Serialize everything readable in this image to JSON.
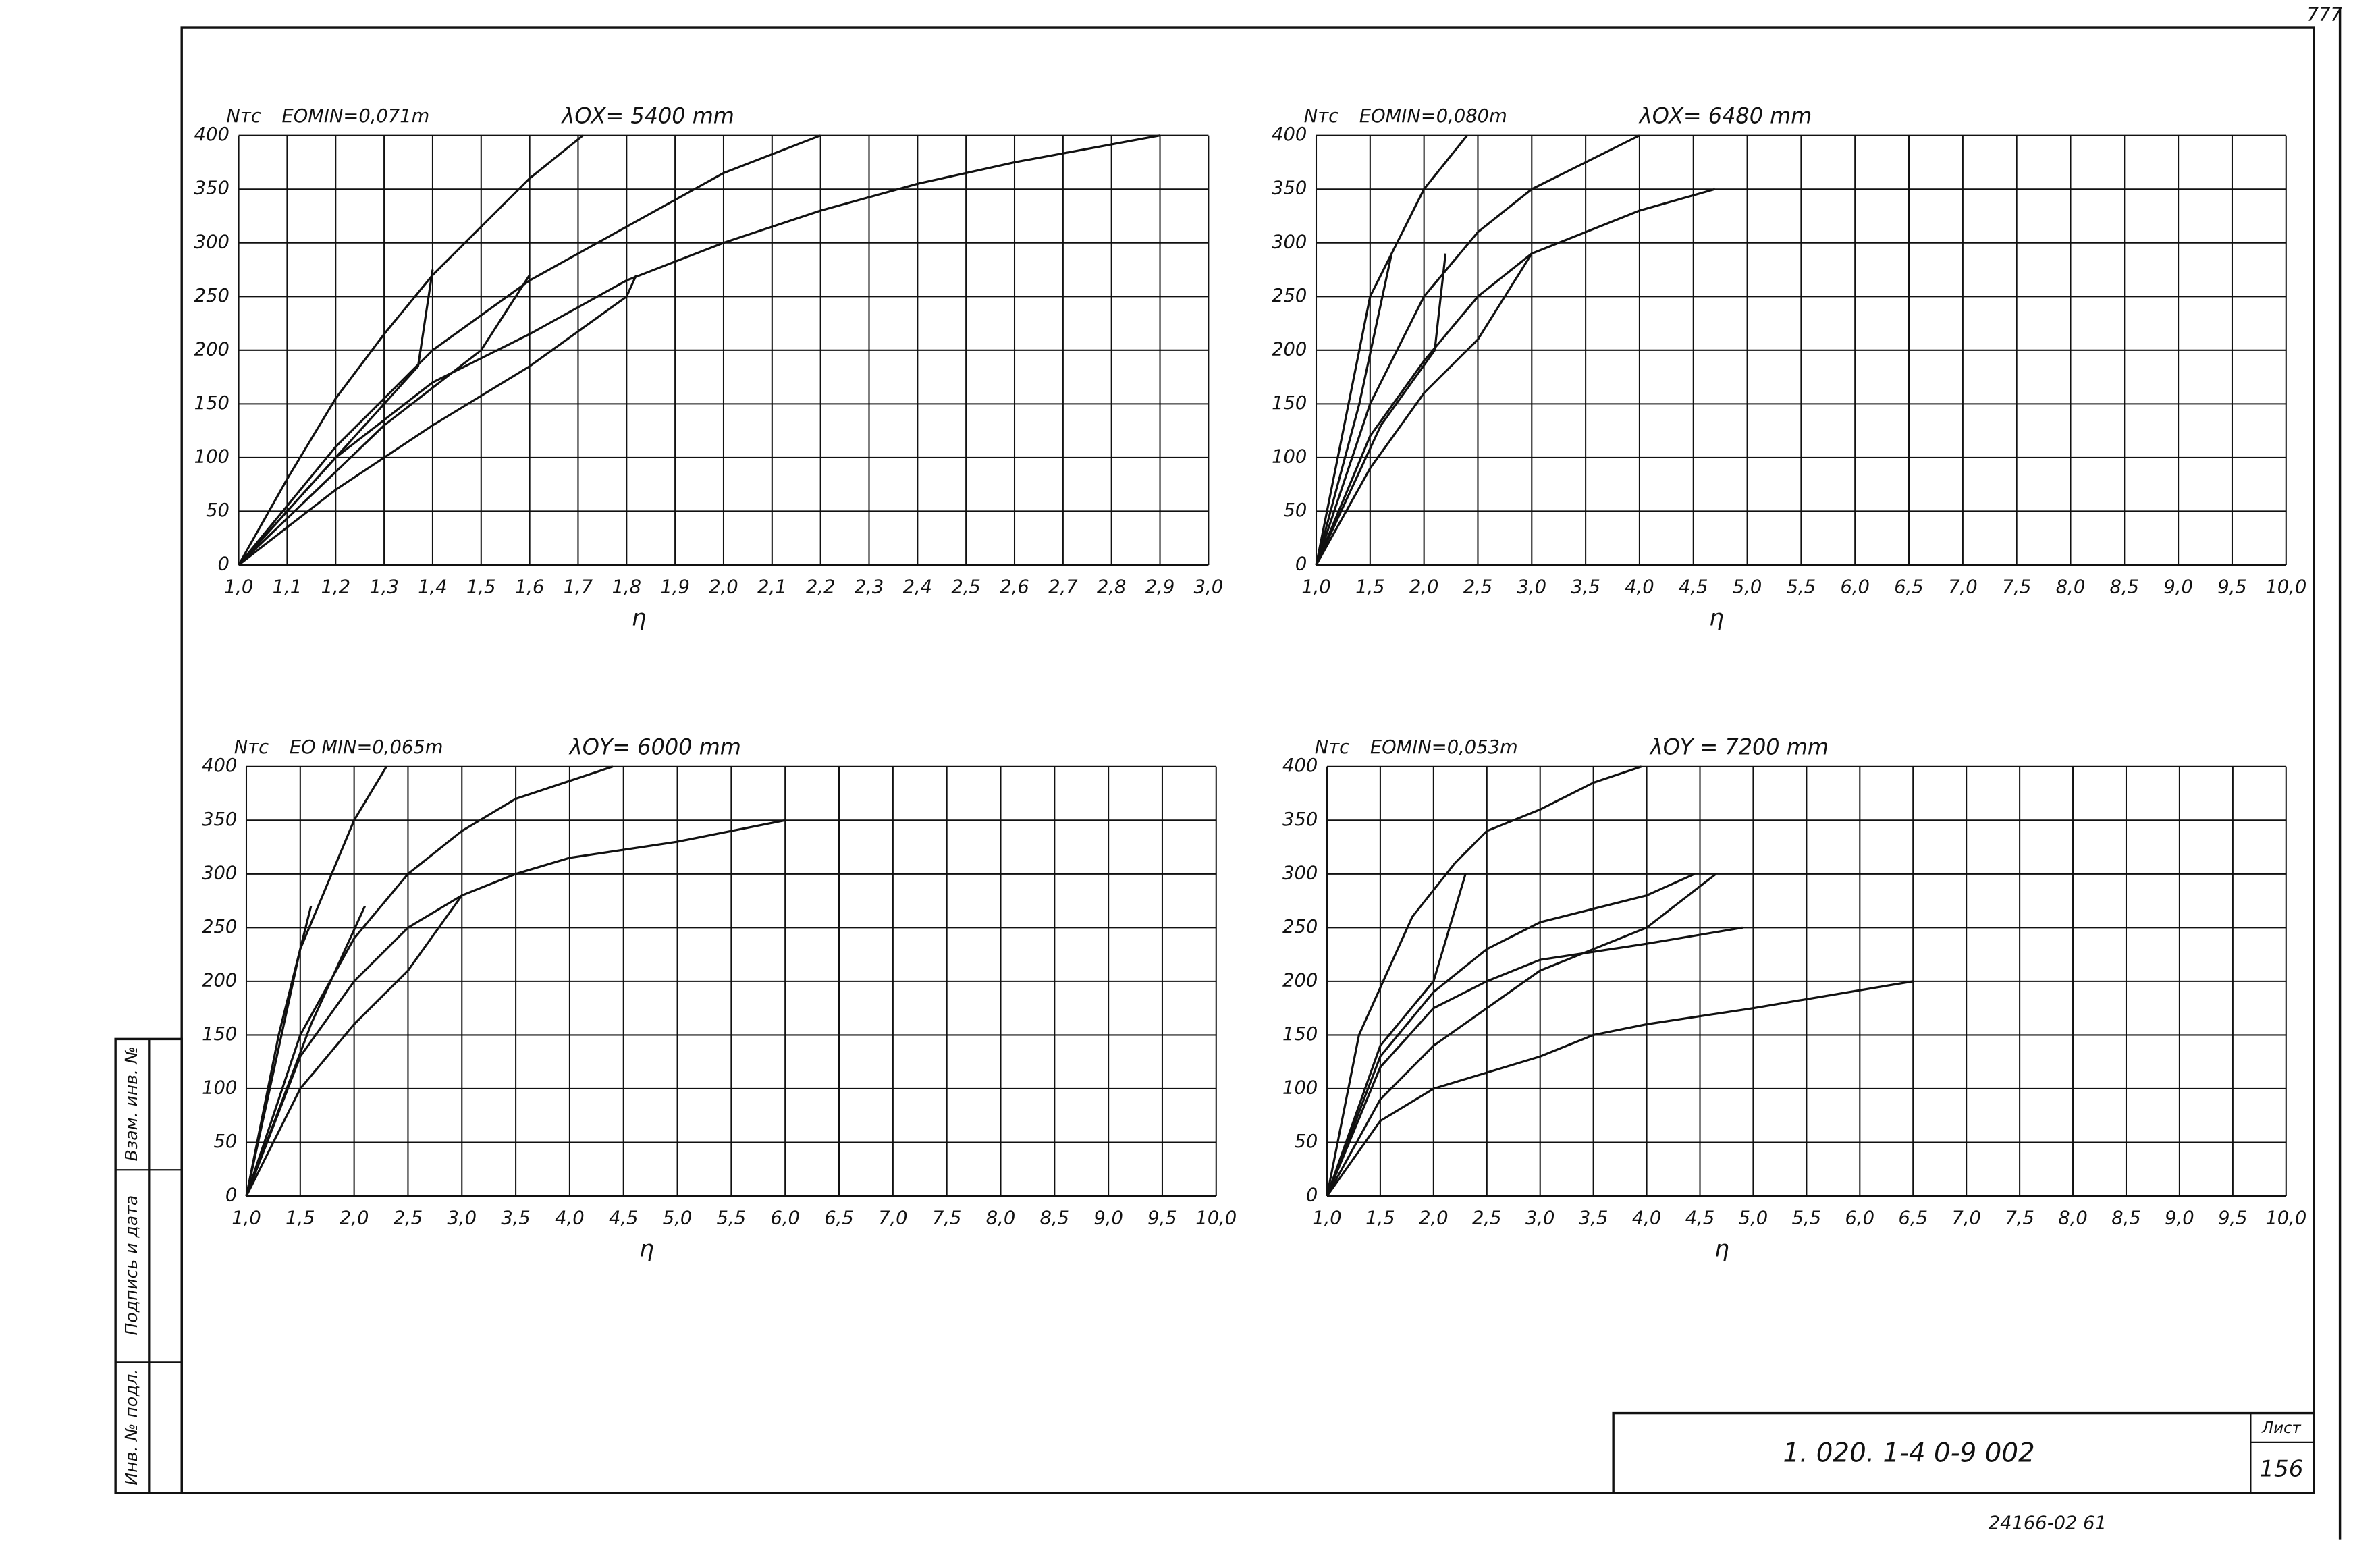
{
  "chart_data": [
    {
      "type": "line",
      "y_label": "Nтс",
      "note": "EOMIN=0,071m",
      "subtitle": "λOX= 5400 mm",
      "x_label": "η",
      "xlim": [
        1.0,
        3.0
      ],
      "ylim": [
        0,
        400
      ],
      "grid": true,
      "color": "#111",
      "xticks": [
        {
          "value": 1.0,
          "label": "1,0"
        },
        {
          "value": 1.1,
          "label": "1,1"
        },
        {
          "value": 1.2,
          "label": "1,2"
        },
        {
          "value": 1.3,
          "label": "1,3"
        },
        {
          "value": 1.4,
          "label": "1,4"
        },
        {
          "value": 1.5,
          "label": "1,5"
        },
        {
          "value": 1.6,
          "label": "1,6"
        },
        {
          "value": 1.7,
          "label": "1,7"
        },
        {
          "value": 1.8,
          "label": "1,8"
        },
        {
          "value": 1.9,
          "label": "1,9"
        },
        {
          "value": 2.0,
          "label": "2,0"
        },
        {
          "value": 2.1,
          "label": "2,1"
        },
        {
          "value": 2.2,
          "label": "2,2"
        },
        {
          "value": 2.3,
          "label": "2,3"
        },
        {
          "value": 2.4,
          "label": "2,4"
        },
        {
          "value": 2.5,
          "label": "2,5"
        },
        {
          "value": 2.6,
          "label": "2,6"
        },
        {
          "value": 2.7,
          "label": "2,7"
        },
        {
          "value": 2.8,
          "label": "2,8"
        },
        {
          "value": 2.9,
          "label": "2,9"
        },
        {
          "value": 3.0,
          "label": "3,0"
        }
      ],
      "yticks": [
        0,
        50,
        100,
        150,
        200,
        250,
        300,
        350,
        400
      ],
      "series": [
        {
          "x": [
            1.0,
            1.1,
            1.2,
            1.3,
            1.4,
            1.5,
            1.6,
            1.71
          ],
          "values": [
            0,
            80,
            155,
            215,
            270,
            315,
            360,
            400
          ]
        },
        {
          "x": [
            1.0,
            1.2,
            1.3,
            1.37,
            1.4
          ],
          "values": [
            0,
            100,
            150,
            185,
            275
          ]
        },
        {
          "x": [
            1.0,
            1.2,
            1.4,
            1.6,
            1.8,
            2.0,
            2.2
          ],
          "values": [
            0,
            110,
            200,
            265,
            315,
            365,
            400
          ]
        },
        {
          "x": [
            1.0,
            1.3,
            1.5,
            1.6
          ],
          "values": [
            0,
            130,
            200,
            270
          ]
        },
        {
          "x": [
            1.0,
            1.2,
            1.4,
            1.6,
            1.8,
            2.0,
            2.2,
            2.4,
            2.6,
            2.9
          ],
          "values": [
            0,
            100,
            170,
            215,
            265,
            300,
            330,
            355,
            375,
            400
          ]
        },
        {
          "x": [
            1.0,
            1.2,
            1.4,
            1.6,
            1.8,
            1.82
          ],
          "values": [
            0,
            70,
            130,
            185,
            250,
            270
          ]
        }
      ]
    },
    {
      "type": "line",
      "y_label": "Nтс",
      "note": "EOMIN=0,080m",
      "subtitle": "λOX= 6480 mm",
      "x_label": "η",
      "xlim": [
        1.0,
        10.0
      ],
      "ylim": [
        0,
        400
      ],
      "grid": true,
      "color": "#111",
      "xticks": [
        {
          "value": 1.0,
          "label": "1,0"
        },
        {
          "value": 1.5,
          "label": "1,5"
        },
        {
          "value": 2.0,
          "label": "2,0"
        },
        {
          "value": 2.5,
          "label": "2,5"
        },
        {
          "value": 3.0,
          "label": "3,0"
        },
        {
          "value": 3.5,
          "label": "3,5"
        },
        {
          "value": 4.0,
          "label": "4,0"
        },
        {
          "value": 4.5,
          "label": "4,5"
        },
        {
          "value": 5.0,
          "label": "5,0"
        },
        {
          "value": 5.5,
          "label": "5,5"
        },
        {
          "value": 6.0,
          "label": "6,0"
        },
        {
          "value": 6.5,
          "label": "6,5"
        },
        {
          "value": 7.0,
          "label": "7,0"
        },
        {
          "value": 7.5,
          "label": "7,5"
        },
        {
          "value": 8.0,
          "label": "8,0"
        },
        {
          "value": 8.5,
          "label": "8,5"
        },
        {
          "value": 9.0,
          "label": "9,0"
        },
        {
          "value": 9.5,
          "label": "9,5"
        },
        {
          "value": 10.0,
          "label": "10,0"
        }
      ],
      "yticks": [
        0,
        50,
        100,
        150,
        200,
        250,
        300,
        350,
        400
      ],
      "series": [
        {
          "x": [
            1.0,
            1.5,
            2.0,
            2.4
          ],
          "values": [
            0,
            250,
            350,
            400
          ]
        },
        {
          "x": [
            1.0,
            1.4,
            1.7
          ],
          "values": [
            0,
            150,
            290
          ]
        },
        {
          "x": [
            1.0,
            1.5,
            2.0,
            2.5,
            3.0,
            4.0
          ],
          "values": [
            0,
            150,
            250,
            310,
            350,
            400
          ]
        },
        {
          "x": [
            1.0,
            1.6,
            2.1,
            2.2
          ],
          "values": [
            0,
            130,
            200,
            290
          ]
        },
        {
          "x": [
            1.0,
            1.5,
            2.0,
            2.5,
            3.0,
            3.5,
            4.0,
            4.7
          ],
          "values": [
            0,
            120,
            190,
            250,
            290,
            310,
            330,
            350
          ]
        },
        {
          "x": [
            1.0,
            1.5,
            2.0,
            2.5,
            3.0
          ],
          "values": [
            0,
            90,
            160,
            210,
            290
          ]
        }
      ]
    },
    {
      "type": "line",
      "y_label": "Nтс",
      "note": "EO MIN=0,065m",
      "subtitle": "λOY= 6000 mm",
      "x_label": "η",
      "xlim": [
        1.0,
        10.0
      ],
      "ylim": [
        0,
        400
      ],
      "grid": true,
      "color": "#111",
      "xticks": [
        {
          "value": 1.0,
          "label": "1,0"
        },
        {
          "value": 1.5,
          "label": "1,5"
        },
        {
          "value": 2.0,
          "label": "2,0"
        },
        {
          "value": 2.5,
          "label": "2,5"
        },
        {
          "value": 3.0,
          "label": "3,0"
        },
        {
          "value": 3.5,
          "label": "3,5"
        },
        {
          "value": 4.0,
          "label": "4,0"
        },
        {
          "value": 4.5,
          "label": "4,5"
        },
        {
          "value": 5.0,
          "label": "5,0"
        },
        {
          "value": 5.5,
          "label": "5,5"
        },
        {
          "value": 6.0,
          "label": "6,0"
        },
        {
          "value": 6.5,
          "label": "6,5"
        },
        {
          "value": 7.0,
          "label": "7,0"
        },
        {
          "value": 7.5,
          "label": "7,5"
        },
        {
          "value": 8.0,
          "label": "8,0"
        },
        {
          "value": 8.5,
          "label": "8,5"
        },
        {
          "value": 9.0,
          "label": "9,0"
        },
        {
          "value": 9.5,
          "label": "9,5"
        },
        {
          "value": 10.0,
          "label": "10,0"
        }
      ],
      "yticks": [
        0,
        50,
        100,
        150,
        200,
        250,
        300,
        350,
        400
      ],
      "series": [
        {
          "x": [
            1.0,
            1.5,
            2.0,
            2.3
          ],
          "values": [
            0,
            230,
            350,
            400
          ]
        },
        {
          "x": [
            1.0,
            1.3,
            1.6
          ],
          "values": [
            0,
            150,
            270
          ]
        },
        {
          "x": [
            1.0,
            1.5,
            2.0,
            2.5,
            3.0,
            3.5,
            4.4
          ],
          "values": [
            0,
            150,
            240,
            300,
            340,
            370,
            400
          ]
        },
        {
          "x": [
            1.0,
            1.6,
            2.1
          ],
          "values": [
            0,
            160,
            270
          ]
        },
        {
          "x": [
            1.0,
            1.5,
            2.0,
            2.5,
            3.0,
            3.5,
            4.0,
            5.0,
            6.0
          ],
          "values": [
            0,
            130,
            200,
            250,
            280,
            300,
            315,
            330,
            350
          ]
        },
        {
          "x": [
            1.0,
            1.5,
            2.0,
            2.5,
            3.0
          ],
          "values": [
            0,
            100,
            160,
            210,
            280
          ]
        }
      ]
    },
    {
      "type": "line",
      "y_label": "Nтс",
      "note": "EOMIN=0,053m",
      "subtitle": "λOY = 7200 mm",
      "x_label": "η",
      "xlim": [
        1.0,
        10.0
      ],
      "ylim": [
        0,
        400
      ],
      "grid": true,
      "color": "#111",
      "xticks": [
        {
          "value": 1.0,
          "label": "1,0"
        },
        {
          "value": 1.5,
          "label": "1,5"
        },
        {
          "value": 2.0,
          "label": "2,0"
        },
        {
          "value": 2.5,
          "label": "2,5"
        },
        {
          "value": 3.0,
          "label": "3,0"
        },
        {
          "value": 3.5,
          "label": "3,5"
        },
        {
          "value": 4.0,
          "label": "4,0"
        },
        {
          "value": 4.5,
          "label": "4,5"
        },
        {
          "value": 5.0,
          "label": "5,0"
        },
        {
          "value": 5.5,
          "label": "5,5"
        },
        {
          "value": 6.0,
          "label": "6,0"
        },
        {
          "value": 6.5,
          "label": "6,5"
        },
        {
          "value": 7.0,
          "label": "7,0"
        },
        {
          "value": 7.5,
          "label": "7,5"
        },
        {
          "value": 8.0,
          "label": "8,0"
        },
        {
          "value": 8.5,
          "label": "8,5"
        },
        {
          "value": 9.0,
          "label": "9,0"
        },
        {
          "value": 9.5,
          "label": "9,5"
        },
        {
          "value": 10.0,
          "label": "10,0"
        }
      ],
      "yticks": [
        0,
        50,
        100,
        150,
        200,
        250,
        300,
        350,
        400
      ],
      "series": [
        {
          "x": [
            1.0,
            1.3,
            1.8,
            2.2,
            2.5,
            3.0,
            3.5,
            3.95
          ],
          "values": [
            0,
            150,
            260,
            310,
            340,
            360,
            385,
            400
          ]
        },
        {
          "x": [
            1.0,
            1.5,
            2.0,
            2.3
          ],
          "values": [
            0,
            140,
            200,
            300
          ]
        },
        {
          "x": [
            1.0,
            1.5,
            2.0,
            2.5,
            3.0,
            4.0,
            4.45
          ],
          "values": [
            0,
            130,
            190,
            230,
            255,
            280,
            300
          ]
        },
        {
          "x": [
            1.0,
            1.5,
            2.0,
            2.5,
            3.0,
            3.5,
            4.0,
            4.65
          ],
          "values": [
            0,
            90,
            140,
            175,
            210,
            230,
            250,
            300
          ]
        },
        {
          "x": [
            1.0,
            1.5,
            2.0,
            2.5,
            3.0,
            4.0,
            4.9
          ],
          "values": [
            0,
            120,
            175,
            200,
            220,
            235,
            250
          ]
        },
        {
          "x": [
            1.0,
            1.5,
            2.0,
            2.5,
            3.0,
            3.5,
            4.0,
            5.0,
            6.5
          ],
          "values": [
            0,
            70,
            100,
            115,
            130,
            150,
            160,
            175,
            200
          ]
        }
      ]
    }
  ],
  "title_block": {
    "code": "1. 020. 1-4    0-9    002",
    "sheet_label": "Лист",
    "sheet": "156"
  },
  "footer": "24166-02     61",
  "corner": "777",
  "side_stamp": [
    "Инв. № подл.",
    "Подпись и дата",
    "Взам. инв. №"
  ]
}
